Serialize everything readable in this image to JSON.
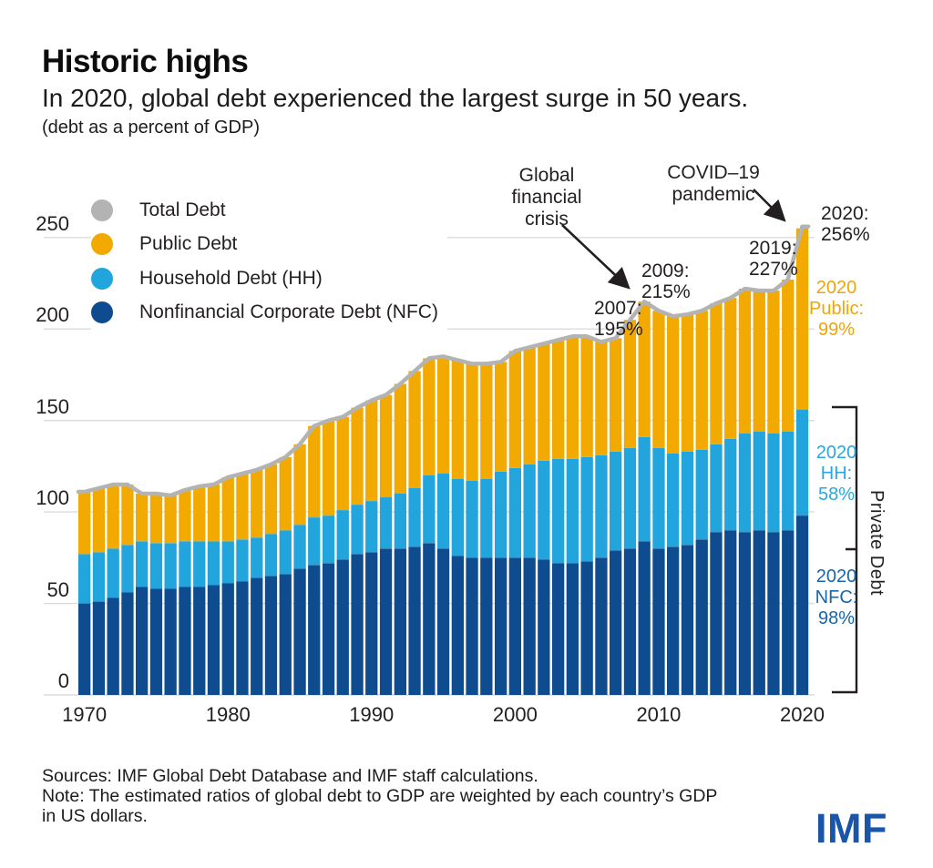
{
  "header": {
    "title": "Historic highs",
    "subtitle": "In 2020, global debt experienced the largest surge in 50 years.",
    "unit_note": "(debt as a percent of GDP)"
  },
  "chart_data": {
    "type": "bar",
    "stacked": true,
    "title": "Historic highs",
    "subtitle": "In 2020, global debt experienced the largest surge in 50 years.",
    "units": "debt as a percent of GDP",
    "x": [
      1970,
      1971,
      1972,
      1973,
      1974,
      1975,
      1976,
      1977,
      1978,
      1979,
      1980,
      1981,
      1982,
      1983,
      1984,
      1985,
      1986,
      1987,
      1988,
      1989,
      1990,
      1991,
      1992,
      1993,
      1994,
      1995,
      1996,
      1997,
      1998,
      1999,
      2000,
      2001,
      2002,
      2003,
      2004,
      2005,
      2006,
      2007,
      2008,
      2009,
      2010,
      2011,
      2012,
      2013,
      2014,
      2015,
      2016,
      2017,
      2018,
      2019,
      2020
    ],
    "series": [
      {
        "name": "Nonfinancial Corporate Debt (NFC)",
        "kind": "bar",
        "color": "#0e4c8f",
        "values": [
          50,
          51,
          53,
          56,
          59,
          58,
          58,
          59,
          59,
          60,
          61,
          62,
          64,
          65,
          66,
          69,
          71,
          72,
          74,
          77,
          78,
          80,
          80,
          81,
          83,
          80,
          76,
          75,
          75,
          75,
          75,
          75,
          74,
          72,
          72,
          73,
          75,
          79,
          80,
          84,
          80,
          81,
          82,
          85,
          89,
          90,
          89,
          90,
          89,
          90,
          98
        ]
      },
      {
        "name": "Household Debt (HH)",
        "kind": "bar",
        "color": "#22a5dd",
        "values": [
          27,
          27,
          27,
          26,
          25,
          25,
          25,
          25,
          25,
          24,
          23,
          23,
          22,
          23,
          24,
          24,
          26,
          26,
          27,
          27,
          28,
          28,
          30,
          32,
          37,
          41,
          42,
          42,
          43,
          47,
          49,
          51,
          54,
          57,
          57,
          57,
          56,
          54,
          55,
          57,
          55,
          51,
          51,
          49,
          48,
          50,
          54,
          54,
          54,
          54,
          58
        ]
      },
      {
        "name": "Public Debt",
        "kind": "bar",
        "color": "#f2a900",
        "values": [
          34,
          35,
          35,
          33,
          26,
          27,
          26,
          28,
          30,
          31,
          35,
          36,
          37,
          38,
          40,
          44,
          50,
          52,
          51,
          53,
          55,
          56,
          60,
          64,
          64,
          64,
          65,
          64,
          63,
          60,
          64,
          64,
          64,
          65,
          67,
          66,
          62,
          62,
          70,
          74,
          75,
          75,
          75,
          76,
          77,
          77,
          79,
          77,
          78,
          83,
          99
        ]
      },
      {
        "name": "Total Debt",
        "kind": "line",
        "color": "#b3b3b3",
        "values": [
          111,
          113,
          115,
          115,
          110,
          110,
          109,
          112,
          114,
          115,
          119,
          121,
          123,
          126,
          130,
          137,
          147,
          150,
          152,
          157,
          161,
          164,
          170,
          177,
          184,
          185,
          183,
          181,
          181,
          182,
          188,
          190,
          192,
          194,
          196,
          196,
          193,
          195,
          205,
          215,
          210,
          207,
          208,
          210,
          214,
          217,
          222,
          221,
          221,
          227,
          256
        ]
      }
    ],
    "ylim": [
      0,
      260
    ],
    "yticks": [
      "0",
      "50",
      "100",
      "150",
      "200",
      "250"
    ],
    "ytick_values": [
      0,
      50,
      100,
      150,
      200,
      250
    ],
    "xticks": [
      "1970",
      "1980",
      "1990",
      "2000",
      "2010",
      "2020"
    ],
    "xtick_values": [
      1970,
      1980,
      1990,
      2000,
      2010,
      2020
    ],
    "grid": true,
    "legend_position": "top-left",
    "legend": [
      {
        "label": "Total Debt",
        "color": "#b3b3b3"
      },
      {
        "label": "Public Debt",
        "color": "#f2a900"
      },
      {
        "label": "Household Debt (HH)",
        "color": "#22a5dd"
      },
      {
        "label": "Nonfinancial Corporate Debt (NFC)",
        "color": "#0e4c8f"
      }
    ],
    "annotations": {
      "gfc": "Global\nfinancial\ncrisis",
      "covid": "COVID–19\npandemic",
      "y2007": "2007:\n195%",
      "y2009": "2009:\n215%",
      "y2019": "2019:\n227%",
      "y2020": "2020:\n256%",
      "label_2020_public": "2020\nPublic:\n99%",
      "label_2020_hh": "2020\nHH:\n58%",
      "label_2020_nfc": "2020\nNFC:\n98%",
      "private_debt": "Private Debt"
    }
  },
  "colors": {
    "nfc": "#0e4c8f",
    "hh": "#22a5dd",
    "public": "#f2a900",
    "total_line": "#b3b3b3",
    "grid": "#dcdcdc",
    "text": "#231f20",
    "label_public": "#eda50a",
    "label_hh": "#29a8e0",
    "label_nfc": "#1566ad",
    "logo_blue": "#1a55a8"
  },
  "footer": {
    "lines": [
      "Sources: IMF Global Debt Database and IMF staff calculations.",
      "Note: The estimated ratios of global debt to GDP are weighted by each country’s GDP",
      "in US dollars."
    ]
  },
  "logo": "IMF"
}
